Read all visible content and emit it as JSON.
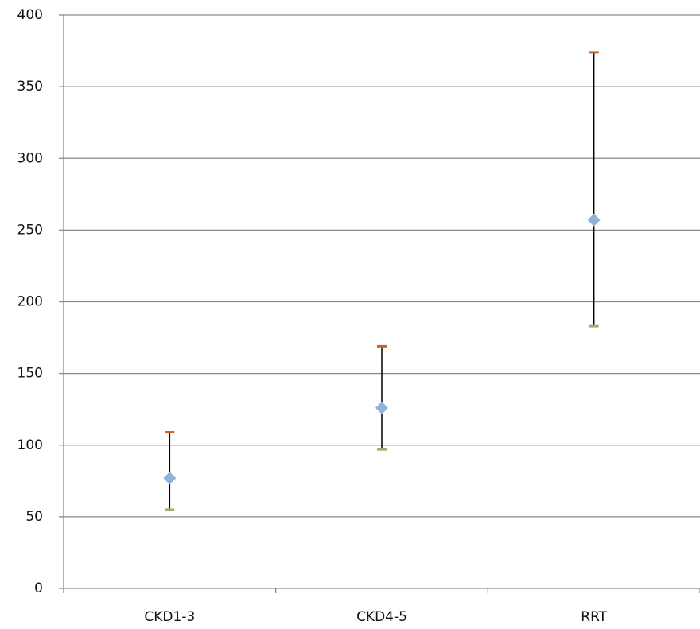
{
  "chart_data": {
    "type": "stock",
    "categories": [
      "CKD1-3",
      "CKD4-5",
      "RRT"
    ],
    "series": [
      {
        "color": "#c8642a",
        "values": [
          109,
          169,
          374
        ]
      },
      {
        "color": "#9fae74",
        "values": [
          55,
          97,
          183
        ]
      },
      {
        "color": "#8fb4d8",
        "values": [
          77,
          126,
          257
        ]
      }
    ],
    "ylim": [
      0,
      400
    ],
    "yticks": [
      0,
      50,
      100,
      150,
      200,
      250,
      300,
      350,
      400
    ],
    "grid": true
  }
}
